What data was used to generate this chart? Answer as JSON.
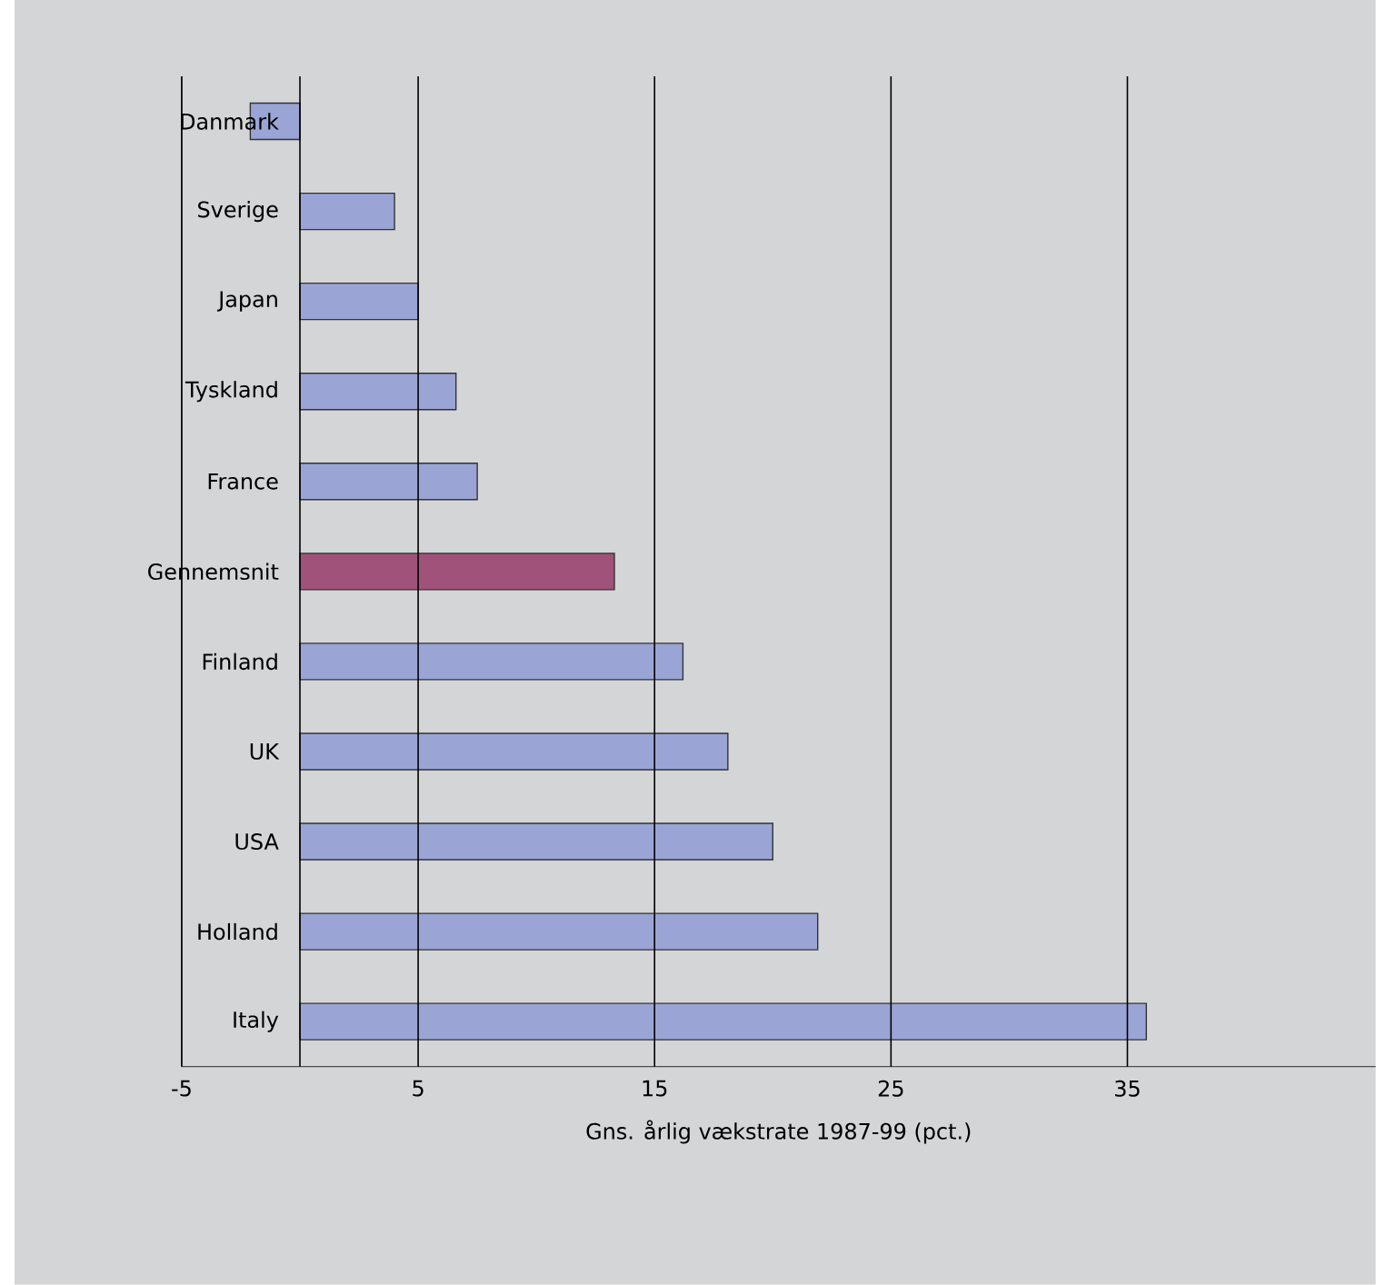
{
  "chart_data": {
    "type": "bar",
    "orientation": "horizontal",
    "categories": [
      "Danmark",
      "Sverige",
      "Japan",
      "Tyskland",
      "France",
      "Gennemsnit",
      "Finland",
      "UK",
      "USA",
      "Holland",
      "Italy"
    ],
    "values": [
      -2.1,
      4.0,
      5.0,
      6.6,
      7.5,
      13.3,
      16.2,
      18.1,
      20.0,
      21.9,
      35.8
    ],
    "colors": [
      "#9aa5d6",
      "#9aa5d6",
      "#9aa5d6",
      "#9aa5d6",
      "#9aa5d6",
      "#a0527a",
      "#9aa5d6",
      "#9aa5d6",
      "#9aa5d6",
      "#9aa5d6",
      "#9aa5d6"
    ],
    "xlabel": "Gns. årlig vækstrate 1987-99  (pct.)",
    "xlim": [
      -5,
      45.5
    ],
    "xticks": [
      -5,
      5,
      15,
      25,
      35
    ],
    "grid": "x",
    "ref_lines": [
      {
        "axis": "x",
        "value": 0,
        "color": "#000000"
      }
    ]
  }
}
